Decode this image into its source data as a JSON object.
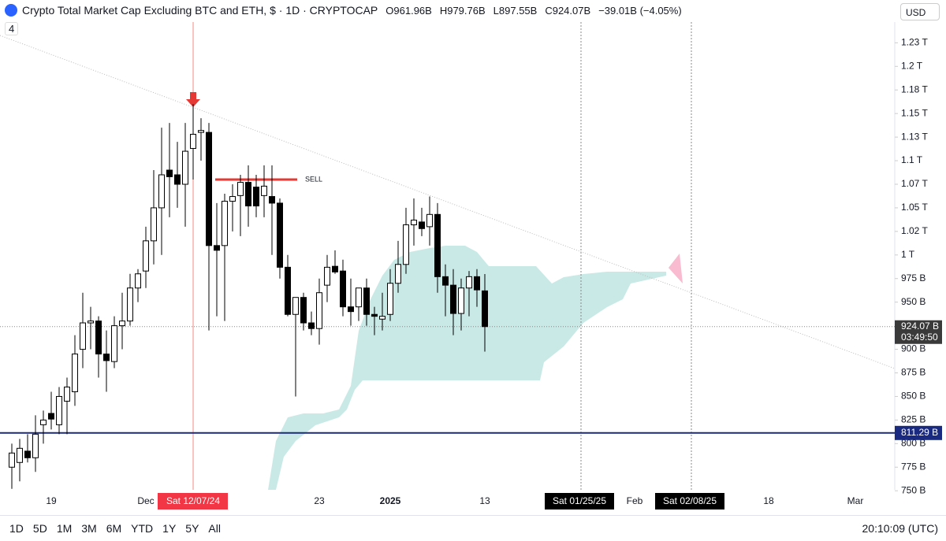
{
  "chart_data": {
    "type": "candlestick",
    "title": "Crypto Total Market Cap Excluding BTC and ETH, $ · 1D · CRYPTOCAP",
    "ohlc_labels": [
      "O961.96B",
      "H979.76B",
      "L897.55B",
      "C924.07B",
      "−39.01B (−4.05%)"
    ],
    "indicator_count": "4",
    "currency": "USD",
    "categories": [
      null,
      null,
      null,
      null,
      null,
      "19",
      null,
      null,
      null,
      null,
      null,
      null,
      null,
      null,
      null,
      null,
      null,
      "Dec",
      null,
      null,
      null,
      null,
      null,
      null,
      null,
      null,
      null,
      null,
      null,
      null,
      null,
      null,
      null,
      null,
      null,
      null,
      null,
      null,
      null,
      "23",
      null,
      null,
      null,
      null,
      null,
      null,
      null,
      null,
      "2025",
      null,
      null,
      null,
      null,
      null,
      null,
      null,
      null,
      null,
      null,
      null,
      "13"
    ],
    "open": [
      775,
      780,
      792,
      785,
      820,
      832,
      820,
      845,
      855,
      900,
      928,
      930,
      895,
      887,
      925,
      930,
      965,
      983,
      1015,
      1050,
      1090,
      1085,
      1075,
      1113,
      1130,
      1130,
      1010,
      1010,
      1057,
      1063,
      1077,
      1072,
      1063,
      1062,
      1055,
      987,
      937,
      955,
      928,
      922,
      968,
      988,
      983,
      945,
      945,
      965,
      937,
      932,
      937,
      970,
      990,
      1032,
      1035,
      1030,
      1043,
      977,
      968,
      938,
      965,
      977,
      961.96
    ],
    "high": [
      800,
      805,
      810,
      830,
      835,
      855,
      860,
      870,
      915,
      960,
      945,
      935,
      920,
      935,
      960,
      980,
      985,
      1030,
      1090,
      1135,
      1140,
      1120,
      1140,
      1160,
      1145,
      1140,
      1055,
      1065,
      1075,
      1085,
      1095,
      1085,
      1095,
      1095,
      1060,
      1000,
      955,
      960,
      940,
      975,
      1000,
      1005,
      995,
      975,
      965,
      975,
      945,
      960,
      985,
      1015,
      1050,
      1060,
      1050,
      1062,
      1055,
      990,
      985,
      975,
      983,
      985,
      979.76
    ],
    "low": [
      752,
      760,
      780,
      770,
      800,
      815,
      810,
      810,
      840,
      880,
      900,
      870,
      855,
      880,
      900,
      925,
      950,
      965,
      990,
      1000,
      1040,
      1050,
      1030,
      1080,
      1100,
      920,
      935,
      930,
      1025,
      1020,
      1030,
      1040,
      1040,
      1000,
      975,
      935,
      850,
      920,
      915,
      905,
      950,
      980,
      935,
      925,
      930,
      925,
      915,
      920,
      930,
      960,
      980,
      1010,
      1020,
      1010,
      960,
      935,
      915,
      920,
      935,
      945,
      897.55
    ],
    "close": [
      790,
      795,
      785,
      810,
      825,
      826,
      850,
      860,
      895,
      928,
      930,
      895,
      888,
      925,
      930,
      965,
      980,
      1015,
      1050,
      1085,
      1083,
      1075,
      1110,
      1128,
      1132,
      1010,
      1005,
      1057,
      1062,
      1077,
      1052,
      1052,
      1073,
      1055,
      987,
      937,
      955,
      928,
      922,
      960,
      987,
      982,
      945,
      940,
      965,
      937,
      935,
      935,
      970,
      990,
      1032,
      1037,
      1028,
      1043,
      977,
      968,
      938,
      965,
      977,
      963,
      924.07
    ],
    "up_color": "#ffffff",
    "down_color": "#000000",
    "ylim": [
      751,
      1247
    ],
    "yticks": [
      {
        "value": 1225,
        "label": "1.23 T"
      },
      {
        "value": 1200,
        "label": "1.2 T"
      },
      {
        "value": 1175,
        "label": "1.18 T"
      },
      {
        "value": 1150,
        "label": "1.15 T"
      },
      {
        "value": 1125,
        "label": "1.13 T"
      },
      {
        "value": 1100,
        "label": "1.1 T"
      },
      {
        "value": 1075,
        "label": "1.07 T"
      },
      {
        "value": 1050,
        "label": "1.05 T"
      },
      {
        "value": 1025,
        "label": "1.02 T"
      },
      {
        "value": 1000,
        "label": "1 T"
      },
      {
        "value": 975,
        "label": "975 B"
      },
      {
        "value": 950,
        "label": "950 B"
      },
      {
        "value": 900,
        "label": "900 B"
      },
      {
        "value": 875,
        "label": "875 B"
      },
      {
        "value": 850,
        "label": "850 B"
      },
      {
        "value": 825,
        "label": "825 B"
      },
      {
        "value": 800,
        "label": "800 B"
      },
      {
        "value": 775,
        "label": "775 B"
      },
      {
        "value": 750,
        "label": "750 B"
      }
    ],
    "last_price": {
      "value": 924.07,
      "label": "924.07 B",
      "countdown": "03:49:50"
    },
    "support_line": {
      "value": 811.29,
      "label": "811.29 B",
      "color": "#1a2a80"
    },
    "sell_line": {
      "value": 1080,
      "label": "SELL",
      "color": "#e53935"
    },
    "marker_date": "Sat 12/07/24",
    "future_x_labels": [
      "Sat 01/25/25",
      "Feb",
      "Sat 02/08/25",
      "18",
      "Mar"
    ]
  },
  "toolbar": {
    "ranges": [
      "1D",
      "5D",
      "1M",
      "3M",
      "6M",
      "YTD",
      "1Y",
      "5Y",
      "All"
    ],
    "clock": "20:10:09 (UTC)"
  }
}
